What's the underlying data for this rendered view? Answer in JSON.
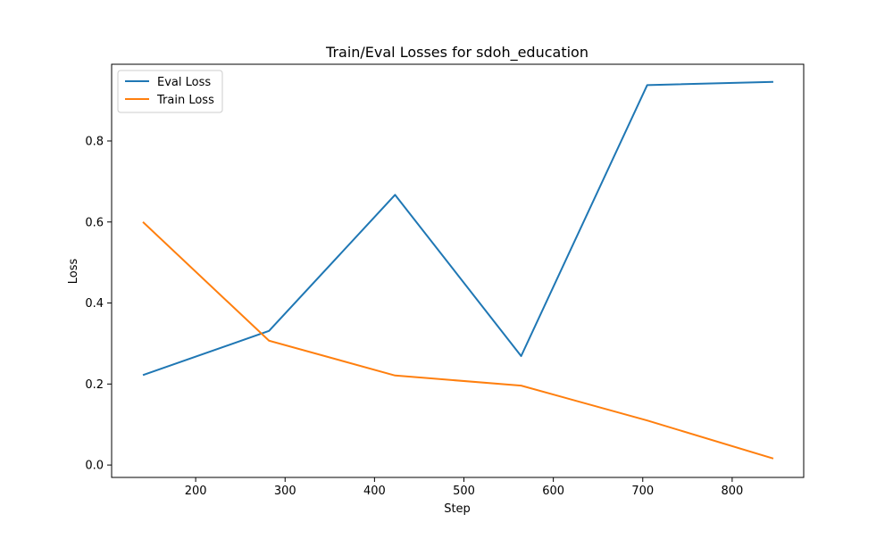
{
  "chart_data": {
    "type": "line",
    "title": "Train/Eval Losses for sdoh_education",
    "xlabel": "Step",
    "ylabel": "Loss",
    "xlim": [
      106,
      880
    ],
    "ylim": [
      -0.0306,
      0.9894
    ],
    "xticks": [
      200,
      300,
      400,
      500,
      600,
      700,
      800
    ],
    "yticks": [
      0.0,
      0.2,
      0.4,
      0.6,
      0.8
    ],
    "ytick_labels": [
      "0.0",
      "0.2",
      "0.4",
      "0.6",
      "0.8"
    ],
    "legend_position": "top-left",
    "grid": false,
    "series": [
      {
        "name": "Eval Loss",
        "color": "#1f77b4",
        "x": [
          141,
          282,
          423,
          564,
          705,
          846
        ],
        "y": [
          0.222,
          0.331,
          0.667,
          0.269,
          0.938,
          0.946
        ]
      },
      {
        "name": "Train Loss",
        "color": "#ff7f0e",
        "x": [
          141,
          282,
          423,
          564,
          705,
          846
        ],
        "y": [
          0.6,
          0.307,
          0.221,
          0.196,
          0.11,
          0.016
        ]
      }
    ]
  }
}
